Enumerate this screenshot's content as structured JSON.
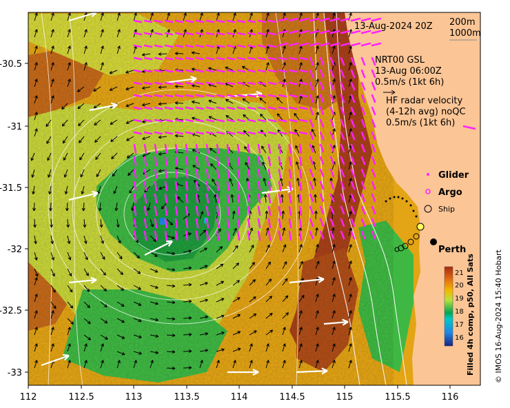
{
  "map": {
    "timestamp": "13-Aug-2024 20Z",
    "depth_labels": [
      "200m",
      "1000m"
    ],
    "nrt": {
      "line1": "NRT00 GSL",
      "line2": "13-Aug 06:00Z",
      "line3": "0.5m/s (1kt 6h)"
    },
    "hf": {
      "line1": "HF radar velocity",
      "line2": "(4-12h avg) noQC",
      "line3": "0.5m/s (1kt 6h)"
    },
    "legend": {
      "glider": "Glider",
      "argo": "Argo",
      "ship": "Ship"
    },
    "city": "Perth",
    "colorbar_title": "Filled 4h comp, p50, All Sats",
    "credit": "© IMOS 16-Aug-2024 15:40 Hobart",
    "x_ticks": [
      "112",
      "112.5",
      "113",
      "113.5",
      "114",
      "114.5",
      "115",
      "115.5",
      "116"
    ],
    "y_ticks": [
      "-30.5",
      "-31",
      "-31.5",
      "-32",
      "-32.5",
      "-33"
    ],
    "colorbar_ticks": [
      "21",
      "20",
      "19",
      "18",
      "17",
      "16"
    ],
    "colors": {
      "land": "#fbc596",
      "hf_arrow": "#ff22ff",
      "model_arrow": "#000000",
      "contour": "#ffffff"
    }
  },
  "chart_data": {
    "type": "heatmap",
    "variable": "sea surface temperature",
    "unit": "°C",
    "xlim": [
      112,
      116.3
    ],
    "ylim": [
      -33.2,
      -30.0
    ],
    "colorbar_range": [
      15.5,
      21.5
    ],
    "colormap": [
      {
        "value": 16,
        "color": "#1a237e"
      },
      {
        "value": 17,
        "color": "#1e88e5"
      },
      {
        "value": 18,
        "color": "#00a651"
      },
      {
        "value": 19,
        "color": "#b8e23a"
      },
      {
        "value": 20,
        "color": "#f5b800"
      },
      {
        "value": 21,
        "color": "#a52a10"
      }
    ],
    "cold_eddy_center": {
      "lon": 113.3,
      "lat": -31.9
    },
    "perth": {
      "lon": 115.86,
      "lat": -31.95
    }
  }
}
